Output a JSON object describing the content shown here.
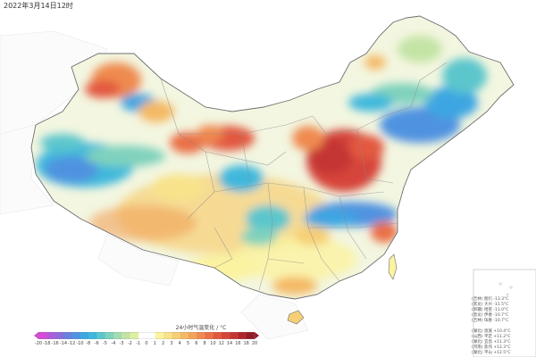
{
  "title": "2022年3月14日12时",
  "legend": {
    "title": "24小时气温变化 / °C",
    "ticks": [
      "-20",
      "-18",
      "-16",
      "-14",
      "-12",
      "-10",
      "-8",
      "-6",
      "-5",
      "-4",
      "-3",
      "-2",
      "-1",
      "0",
      "1",
      "2",
      "3",
      "4",
      "5",
      "6",
      "8",
      "10",
      "12",
      "14",
      "16",
      "18",
      "20"
    ],
    "colors": [
      "#d54bd8",
      "#b05ad8",
      "#8a6cda",
      "#6a7fde",
      "#4f93e0",
      "#3ea6e2",
      "#3fb8dc",
      "#5bc6cc",
      "#7fd2bd",
      "#a3dcb2",
      "#c4e4a6",
      "#def0a0",
      "#ffffff",
      "#ffffff",
      "#fbf3a0",
      "#f8e38a",
      "#f6cf74",
      "#f4b965",
      "#f2a25a",
      "#ef8a50",
      "#ea7047",
      "#e2583f",
      "#d6453a",
      "#c43534",
      "#ae262d",
      "#951a27"
    ]
  },
  "stats_drop": [
    "(吉林) 图们 -13.3°C",
    "(黑龙) 大兴 -11.5°C",
    "(新疆) 哈密 -11.0°C",
    "(黑龙) 伊春 -10.7°C",
    "(吉林) 珲春 -10.7°C"
  ],
  "stats_rise": [
    "(湖北) 恩施 +10.4°C",
    "(山西) 平定 +11.2°C",
    "(湖北) 宜昌 +11.3°C",
    "(河南) 焦作 +12.3°C",
    "(湖北) 平山 +12.5°C"
  ]
}
